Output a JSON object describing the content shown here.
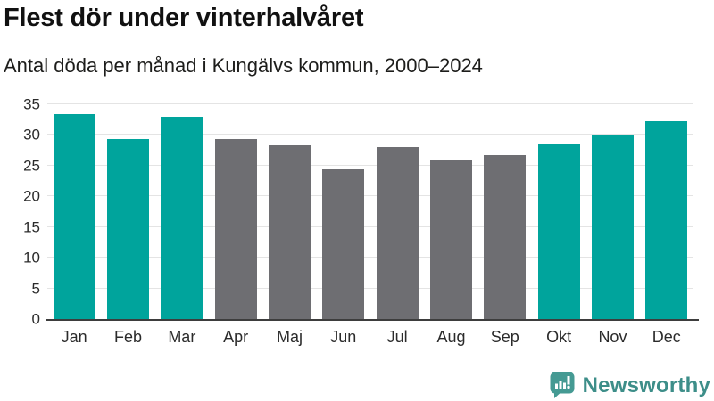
{
  "chart_data": {
    "type": "bar",
    "title": "Flest dör under vinterhalvåret",
    "subtitle": "Antal döda per månad i Kungälvs kommun, 2000–2024",
    "categories": [
      "Jan",
      "Feb",
      "Mar",
      "Apr",
      "Maj",
      "Jun",
      "Jul",
      "Aug",
      "Sep",
      "Okt",
      "Nov",
      "Dec"
    ],
    "values": [
      33.4,
      29.4,
      33.0,
      29.3,
      28.3,
      24.4,
      28.1,
      26.0,
      26.7,
      28.4,
      30.0,
      32.3
    ],
    "bar_color_keys": [
      "teal",
      "teal",
      "teal",
      "gray",
      "gray",
      "gray",
      "gray",
      "gray",
      "gray",
      "teal",
      "teal",
      "teal"
    ],
    "colors": {
      "teal": "#00a49c",
      "gray": "#6e6e72"
    },
    "ylim": [
      0,
      35
    ],
    "yticks": [
      0,
      5,
      10,
      15,
      20,
      25,
      30,
      35
    ],
    "xlabel": "",
    "ylabel": "",
    "grid": "horizontal",
    "legend": "none"
  },
  "logo": {
    "text": "Newsworthy",
    "icon_color": "#459a93",
    "text_color": "#3d8e89"
  }
}
